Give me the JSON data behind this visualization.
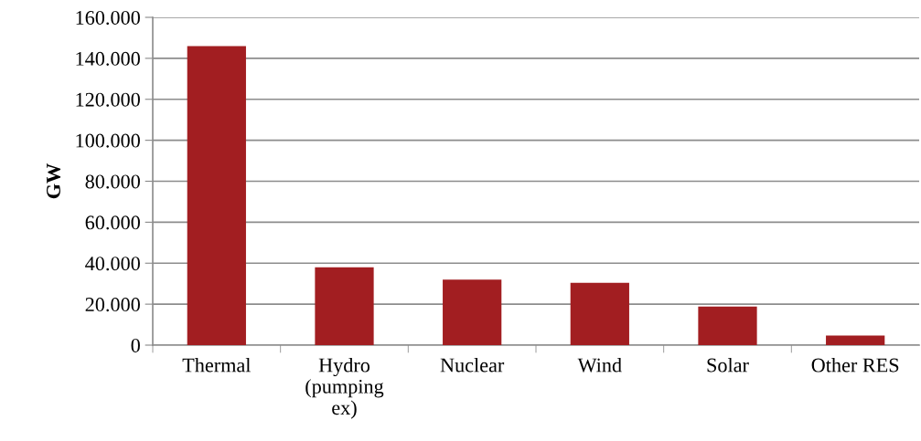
{
  "chart_data": {
    "type": "bar",
    "ylabel": "GW",
    "categories": [
      "Thermal",
      "Hydro\n(pumping\nex)",
      "Nuclear",
      "Wind",
      "Solar",
      "Other RES"
    ],
    "values": [
      146000,
      38000,
      32000,
      30400,
      18800,
      4700
    ],
    "color": "#a21e21",
    "ylim": [
      0,
      160000
    ],
    "yticks": [
      {
        "value": 0,
        "label": "0"
      },
      {
        "value": 20000,
        "label": "20.000"
      },
      {
        "value": 40000,
        "label": "40.000"
      },
      {
        "value": 60000,
        "label": "60.000"
      },
      {
        "value": 80000,
        "label": "80.000"
      },
      {
        "value": 100000,
        "label": "100.000"
      },
      {
        "value": 120000,
        "label": "120.000"
      },
      {
        "value": 140000,
        "label": "140.000"
      },
      {
        "value": 160000,
        "label": "160.000"
      }
    ],
    "grid": "y",
    "legend": false
  }
}
